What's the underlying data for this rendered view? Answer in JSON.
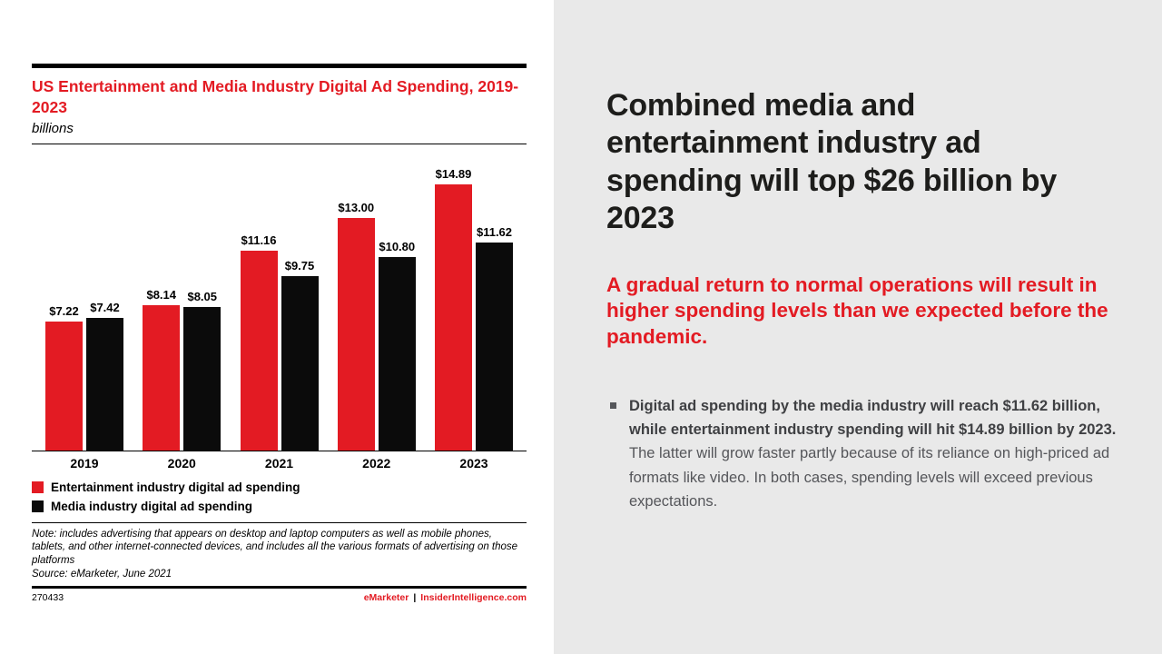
{
  "colors": {
    "accent_red": "#e31b23",
    "bar_black": "#0b0b0b",
    "panel_bg": "#e9e9e9",
    "body_text": "#55565a"
  },
  "chart": {
    "title": "US Entertainment and Media Industry Digital Ad Spending, 2019-2023",
    "subtitle": "billions",
    "note": "Note: includes advertising that appears on desktop and laptop computers as well as mobile phones, tablets, and other internet-connected devices, and includes all the various formats of advertising on those platforms",
    "source": "Source: eMarketer, June 2021",
    "footer_id": "270433",
    "brand": "eMarketer",
    "brand_separator": "|",
    "brand_site": "InsiderIntelligence.com"
  },
  "chart_data": {
    "type": "bar",
    "title": "US Entertainment and Media Industry Digital Ad Spending, 2019-2023",
    "units": "billions",
    "categories": [
      "2019",
      "2020",
      "2021",
      "2022",
      "2023"
    ],
    "series": [
      {
        "name": "Entertainment industry digital ad spending",
        "color": "#e31b23",
        "values": [
          7.22,
          8.14,
          11.16,
          13.0,
          14.89
        ]
      },
      {
        "name": "Media industry digital ad spending",
        "color": "#0b0b0b",
        "values": [
          7.42,
          8.05,
          9.75,
          10.8,
          11.62
        ]
      }
    ],
    "value_label_prefix": "$",
    "ylim": [
      0,
      16
    ],
    "grid": false,
    "legend_position": "bottom-left"
  },
  "panel": {
    "headline": "Combined media and entertainment industry ad spending will top $26 billion by 2023",
    "subhead": "A gradual return to normal operations will result in higher spending levels than we expected before the pandemic.",
    "bullet_bold": "Digital ad spending by the media industry will reach $11.62 billion, while entertainment industry spending will hit $14.89 billion by 2023.",
    "bullet_rest": " The latter will grow faster partly because of its reliance on high-priced ad formats like video. In both cases, spending levels will exceed previous expectations."
  }
}
